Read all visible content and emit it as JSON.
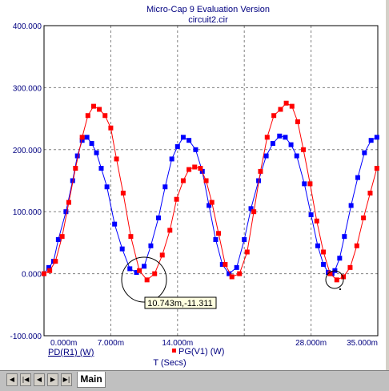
{
  "window": {
    "title": "Micro-Cap 9 Evaluation Version",
    "subtitle": "circuit2.cir"
  },
  "tabs": {
    "nav": [
      "◀",
      "|◀",
      "◀",
      "▶",
      "▶|"
    ],
    "active": "Main"
  },
  "cursor_readout": "10.743m,-11.311",
  "colors": {
    "background": "#ffffff",
    "grid": "#808080",
    "text": "#000080",
    "series_blue": "#0000ff",
    "series_red": "#ff0000",
    "annotation": "#000000"
  },
  "chart_data": {
    "type": "line",
    "title": "",
    "xlabel": "T (Secs)",
    "ylabel": "",
    "xlim": [
      0,
      35
    ],
    "ylim": [
      -100,
      400
    ],
    "x_unit": "ms",
    "x_ticks": [
      0,
      7,
      14,
      21,
      28,
      35
    ],
    "x_tick_labels": [
      "0.000m",
      "7.000m",
      "14.000m",
      "",
      "28.000m",
      "35.000m"
    ],
    "y_ticks": [
      -100,
      0,
      100,
      200,
      300,
      400
    ],
    "y_tick_labels": [
      "-100.000",
      "0.000",
      "100.000",
      "200.000",
      "300.000",
      "400.000"
    ],
    "grid": true,
    "legend": [
      "PD(R1) (W)",
      "PG(V1) (W)"
    ],
    "series": [
      {
        "name": "PD(R1) (W)",
        "color": "#0000ff",
        "marker": "square",
        "x": [
          0.0,
          0.5,
          1.0,
          1.5,
          2.3,
          3.0,
          3.5,
          4.0,
          4.5,
          5.0,
          5.5,
          6.0,
          6.6,
          7.4,
          8.2,
          9.0,
          9.7,
          10.5,
          11.2,
          12.0,
          12.7,
          13.4,
          14.0,
          14.6,
          15.2,
          15.9,
          16.6,
          17.3,
          18.0,
          18.7,
          19.4,
          20.2,
          21.0,
          21.7,
          22.5,
          23.3,
          24.0,
          24.7,
          25.3,
          25.9,
          26.5,
          27.3,
          28.0,
          28.7,
          29.3,
          29.8,
          30.2,
          30.5,
          31.0,
          31.5,
          32.2,
          32.9,
          33.6,
          34.3,
          34.9
        ],
        "y": [
          0,
          10,
          20,
          55,
          100,
          150,
          190,
          215,
          220,
          210,
          195,
          170,
          140,
          80,
          40,
          8,
          2,
          12,
          45,
          90,
          140,
          185,
          205,
          220,
          215,
          200,
          165,
          110,
          55,
          15,
          0,
          10,
          55,
          105,
          150,
          190,
          210,
          222,
          220,
          208,
          190,
          145,
          95,
          45,
          15,
          2,
          0,
          5,
          25,
          60,
          110,
          155,
          195,
          215,
          220
        ]
      },
      {
        "name": "PG(V1) (W)",
        "color": "#ff0000",
        "marker": "square",
        "x": [
          0.0,
          0.6,
          1.2,
          1.9,
          2.6,
          3.3,
          4.0,
          4.6,
          5.2,
          5.8,
          6.4,
          7.0,
          7.6,
          8.3,
          9.1,
          10.0,
          10.8,
          11.6,
          12.4,
          13.2,
          13.9,
          14.6,
          15.2,
          15.8,
          16.4,
          17.0,
          17.6,
          18.3,
          19.0,
          19.7,
          20.5,
          21.3,
          22.0,
          22.7,
          23.4,
          24.1,
          24.8,
          25.4,
          26.0,
          26.6,
          27.2,
          27.9,
          28.6,
          29.3,
          30.0,
          30.7,
          31.4,
          32.1,
          32.8,
          33.5,
          34.2,
          34.9
        ],
        "y": [
          0,
          5,
          20,
          60,
          115,
          170,
          220,
          255,
          270,
          265,
          255,
          235,
          185,
          130,
          60,
          5,
          -10,
          0,
          30,
          70,
          120,
          150,
          168,
          172,
          170,
          150,
          115,
          65,
          15,
          -5,
          0,
          35,
          100,
          165,
          220,
          255,
          265,
          275,
          270,
          245,
          200,
          145,
          85,
          35,
          0,
          -10,
          -5,
          10,
          45,
          90,
          130,
          170
        ]
      }
    ]
  }
}
